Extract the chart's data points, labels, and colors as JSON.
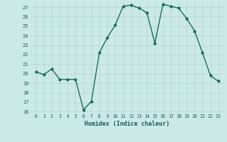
{
  "x": [
    0,
    1,
    2,
    3,
    4,
    5,
    6,
    7,
    8,
    9,
    10,
    11,
    12,
    13,
    14,
    15,
    16,
    17,
    18,
    19,
    20,
    21,
    22,
    23
  ],
  "y": [
    20.2,
    19.9,
    20.5,
    19.4,
    19.4,
    19.4,
    16.2,
    17.1,
    22.2,
    23.8,
    25.1,
    27.1,
    27.2,
    26.9,
    26.4,
    23.2,
    27.3,
    27.1,
    26.9,
    25.8,
    24.5,
    22.2,
    19.8,
    19.2
  ],
  "xlabel": "Humidex (Indice chaleur)",
  "ylim": [
    15.8,
    27.6
  ],
  "yticks": [
    16,
    17,
    18,
    19,
    20,
    21,
    22,
    23,
    24,
    25,
    26,
    27
  ],
  "xticks": [
    0,
    1,
    2,
    3,
    4,
    5,
    6,
    7,
    8,
    9,
    10,
    11,
    12,
    13,
    14,
    15,
    16,
    17,
    18,
    19,
    20,
    21,
    22,
    23
  ],
  "line_color": "#1a6b5a",
  "bg_color": "#cce9e9",
  "grid_color": "#b0d4d4",
  "marker": "D",
  "marker_size": 1.8,
  "line_width": 1.0
}
